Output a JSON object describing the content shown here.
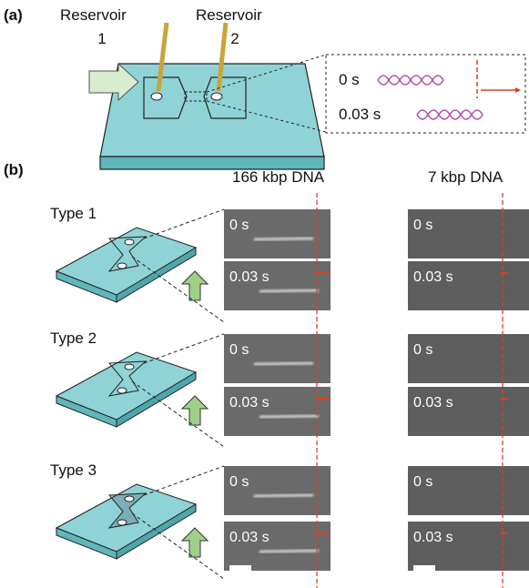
{
  "panel_a": {
    "label": "(a)",
    "reservoirs": [
      {
        "title": "Reservoir",
        "number": "1"
      },
      {
        "title": "Reservoir",
        "number": "2"
      }
    ],
    "inset_times": [
      "0 s",
      "0.03 s"
    ]
  },
  "panel_b": {
    "label": "(b)",
    "columns": [
      "166 kbp DNA",
      "7 kbp DNA"
    ],
    "rows": [
      {
        "type": "Type 1",
        "time_labels": [
          "0 s",
          "0.03 s"
        ]
      },
      {
        "type": "Type 2",
        "time_labels": [
          "0 s",
          "0.03 s"
        ]
      },
      {
        "type": "Type 3",
        "time_labels": [
          "0 s",
          "0.03 s"
        ]
      }
    ]
  }
}
